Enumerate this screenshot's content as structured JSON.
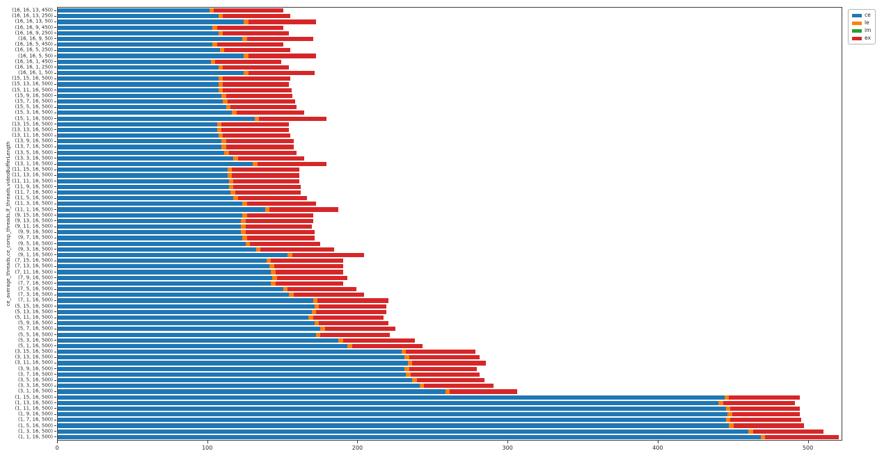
{
  "chart_data": {
    "type": "bar",
    "orientation": "horizontal",
    "stacked": true,
    "title": "",
    "xlabel": "",
    "ylabel": "ce_average_threads,ce_comp_threads,lf_threads,videoBufferLength",
    "xlim": [
      0,
      522
    ],
    "grid": false,
    "x_ticks": [
      0,
      100,
      200,
      300,
      400,
      500
    ],
    "x_tick_labels": [
      "0",
      "100",
      "200",
      "300",
      "400",
      "500"
    ],
    "legend": {
      "position": "upper right outside",
      "entries": [
        {
          "name": "ce",
          "color": "#1f77b4"
        },
        {
          "name": "le",
          "color": "#ff7f0e"
        },
        {
          "name": "im",
          "color": "#2ca02c"
        },
        {
          "name": "ex",
          "color": "#d62728"
        }
      ]
    },
    "categories": [
      "(16, 16, 13, 450)",
      "(16, 16, 13, 250)",
      "(16, 16, 13, 50)",
      "(16, 16, 9, 450)",
      "(16, 16, 9, 250)",
      "(16, 16, 9, 50)",
      "(16, 16, 5, 450)",
      "(16, 16, 5, 250)",
      "(16, 16, 5, 50)",
      "(16, 16, 1, 450)",
      "(16, 16, 1, 250)",
      "(16, 16, 1, 50)",
      "(15, 15, 16, 500)",
      "(15, 13, 16, 500)",
      "(15, 11, 16, 500)",
      "(15, 9, 16, 500)",
      "(15, 7, 16, 500)",
      "(15, 5, 16, 500)",
      "(15, 3, 16, 500)",
      "(15, 1, 16, 500)",
      "(13, 15, 16, 500)",
      "(13, 13, 16, 500)",
      "(13, 11, 16, 500)",
      "(13, 9, 16, 500)",
      "(13, 7, 16, 500)",
      "(13, 5, 16, 500)",
      "(13, 3, 16, 500)",
      "(13, 1, 16, 500)",
      "(11, 15, 16, 500)",
      "(11, 13, 16, 500)",
      "(11, 11, 16, 500)",
      "(11, 9, 16, 500)",
      "(11, 7, 16, 500)",
      "(11, 5, 16, 500)",
      "(11, 3, 16, 500)",
      "(11, 1, 16, 500)",
      "(9, 15, 16, 500)",
      "(9, 13, 16, 500)",
      "(9, 11, 16, 500)",
      "(9, 9, 16, 500)",
      "(9, 7, 16, 500)",
      "(9, 5, 16, 500)",
      "(9, 3, 16, 500)",
      "(9, 1, 16, 500)",
      "(7, 15, 16, 500)",
      "(7, 13, 16, 500)",
      "(7, 11, 16, 500)",
      "(7, 9, 16, 500)",
      "(7, 7, 16, 500)",
      "(7, 5, 16, 500)",
      "(7, 3, 16, 500)",
      "(7, 1, 16, 500)",
      "(5, 15, 16, 500)",
      "(5, 13, 16, 500)",
      "(5, 11, 16, 500)",
      "(5, 9, 16, 500)",
      "(5, 7, 16, 500)",
      "(5, 5, 16, 500)",
      "(5, 3, 16, 500)",
      "(5, 1, 16, 500)",
      "(3, 15, 16, 500)",
      "(3, 13, 16, 500)",
      "(3, 11, 16, 500)",
      "(3, 9, 16, 500)",
      "(3, 7, 16, 500)",
      "(3, 5, 16, 500)",
      "(3, 3, 16, 500)",
      "(3, 1, 16, 500)",
      "(1, 15, 16, 500)",
      "(1, 13, 16, 500)",
      "(1, 11, 16, 500)",
      "(1, 9, 16, 500)",
      "(1, 7, 16, 500)",
      "(1, 5, 16, 500)",
      "(1, 3, 16, 500)",
      "(1, 1, 16, 500)"
    ],
    "series": [
      {
        "name": "ce",
        "color": "#1f77b4",
        "values": [
          101,
          107,
          124,
          103,
          107,
          123,
          103,
          108,
          124,
          102,
          107,
          124,
          107,
          107,
          107,
          109,
          110,
          112,
          116,
          131,
          106,
          106,
          107,
          109,
          109,
          111,
          117,
          130,
          113,
          113,
          114,
          114,
          115,
          117,
          123,
          138,
          123,
          122,
          122,
          122,
          123,
          125,
          132,
          153,
          139,
          141,
          142,
          143,
          142,
          150,
          154,
          170,
          171,
          169,
          167,
          171,
          175,
          172,
          187,
          193,
          229,
          231,
          233,
          231,
          232,
          236,
          241,
          258,
          444,
          440,
          445,
          446,
          445,
          447,
          460,
          468
        ]
      },
      {
        "name": "le",
        "color": "#ff7f0e",
        "values": [
          3,
          3,
          3,
          3,
          3,
          3,
          3,
          3,
          3,
          3,
          3,
          3,
          3,
          3,
          3,
          3,
          3,
          3,
          3,
          3,
          3,
          3,
          3,
          3,
          3,
          3,
          3,
          3,
          3,
          3,
          3,
          3,
          3,
          3,
          3,
          3,
          3,
          3,
          3,
          3,
          3,
          3,
          3,
          3,
          3,
          3,
          3,
          3,
          3,
          3,
          3,
          3,
          3,
          3,
          3,
          3,
          3,
          3,
          3,
          3,
          3,
          3,
          3,
          3,
          3,
          3,
          3,
          3,
          3,
          3,
          3,
          3,
          3,
          3,
          3,
          3
        ]
      },
      {
        "name": "im",
        "color": "#2ca02c",
        "values": [
          0,
          0,
          0,
          0,
          0,
          0,
          0,
          0,
          0,
          0,
          0,
          0,
          0,
          0,
          0,
          0,
          0,
          0,
          0,
          0,
          0,
          0,
          0,
          0,
          0,
          0,
          0,
          0,
          0,
          0,
          0,
          0,
          0,
          0,
          0,
          0,
          0,
          0,
          0,
          0,
          0,
          0,
          0,
          0,
          0,
          0,
          0,
          0,
          0,
          0,
          0,
          0,
          0,
          0,
          0,
          0,
          0,
          0,
          0,
          0,
          0,
          0,
          0,
          0,
          0,
          0,
          0,
          0,
          0,
          0,
          0,
          0,
          0,
          0,
          0,
          0
        ]
      },
      {
        "name": "ex",
        "color": "#d62728",
        "values": [
          46,
          45,
          45,
          44,
          44,
          44,
          44,
          44,
          45,
          44,
          44,
          44,
          45,
          44,
          46,
          44,
          45,
          44,
          45,
          45,
          45,
          45,
          45,
          45,
          45,
          45,
          44,
          46,
          45,
          45,
          44,
          45,
          44,
          46,
          46,
          46,
          44,
          45,
          44,
          46,
          45,
          47,
          49,
          48,
          48,
          46,
          45,
          47,
          45,
          46,
          47,
          47,
          45,
          47,
          47,
          46,
          47,
          46,
          48,
          47,
          46,
          47,
          49,
          45,
          46,
          45,
          46,
          45,
          47,
          48,
          46,
          45,
          47,
          47,
          47,
          49
        ]
      }
    ]
  }
}
